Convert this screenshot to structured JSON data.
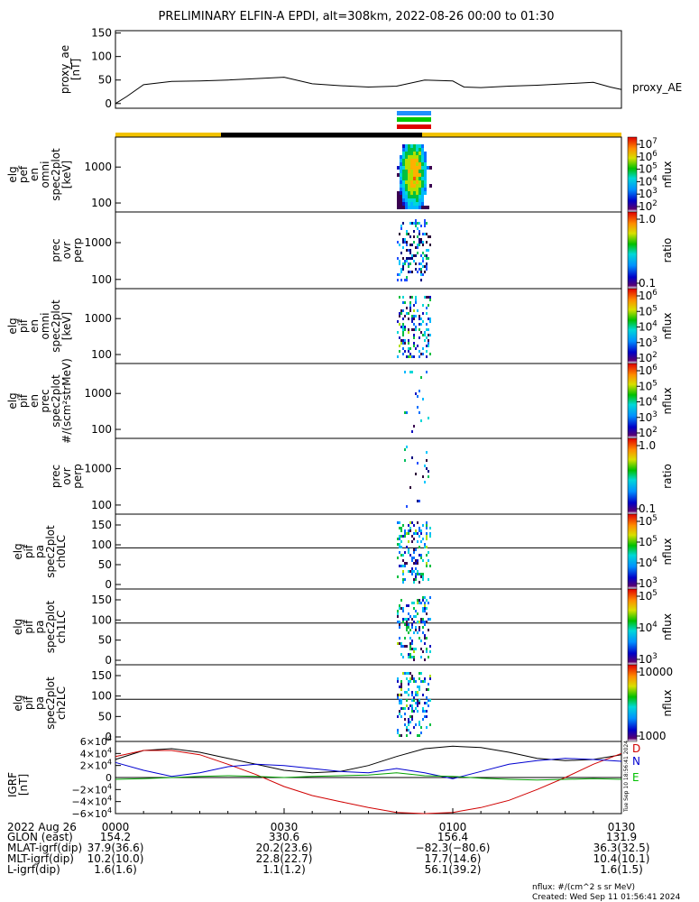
{
  "title": "PRELIMINARY ELFIN-A EPDI, alt=308km, 2022-08-26 00:00 to 01:30",
  "proxy_ae": {
    "ylabel_lines": [
      "proxy_ae",
      "[nT]"
    ],
    "label": "proxy_AE",
    "yticks": [
      "150",
      "100",
      "50",
      "0"
    ],
    "ylim": [
      -10,
      155
    ],
    "x_min": [
      0,
      2,
      5,
      10,
      15,
      20,
      30,
      35,
      40,
      45,
      50,
      55,
      60,
      62,
      65,
      70,
      75,
      80,
      85,
      88,
      90
    ],
    "values": [
      0,
      15,
      40,
      47,
      48,
      50,
      56,
      42,
      38,
      35,
      37,
      50,
      48,
      35,
      34,
      37,
      39,
      42,
      45,
      35,
      30
    ]
  },
  "spectrogram_panels": [
    {
      "ylabel_lines": [
        "elg",
        "pef",
        "en",
        "omni",
        "spec2plot",
        "[keV]"
      ],
      "yticks": [
        "1000",
        "100"
      ],
      "cbar": {
        "type": "log",
        "ticks": [
          "10^7",
          "10^6",
          "10^5",
          "10^4",
          "10^3",
          "10^2"
        ],
        "label": "nflux"
      }
    },
    {
      "ylabel_lines": [
        "prec",
        "ovr",
        "perp"
      ],
      "yticks": [
        "1000",
        "100"
      ],
      "cbar": {
        "type": "ratio",
        "ticks": [
          "1.0",
          "0.1"
        ],
        "label": "ratio"
      }
    },
    {
      "ylabel_lines": [
        "elg",
        "pif",
        "en",
        "omni",
        "spec2plot",
        "[keV]"
      ],
      "yticks": [
        "1000",
        "100"
      ],
      "cbar": {
        "type": "log",
        "ticks": [
          "10^6",
          "10^5",
          "10^4",
          "10^3",
          "10^2"
        ],
        "label": "nflux"
      }
    },
    {
      "ylabel_lines": [
        "elg",
        "pif",
        "en",
        "prec",
        "spec2plot",
        "#/(scm²strMeV)"
      ],
      "yticks": [
        "1000",
        "100"
      ],
      "cbar": {
        "type": "log",
        "ticks": [
          "10^6",
          "10^5",
          "10^4",
          "10^3",
          "10^2"
        ],
        "label": "nflux"
      }
    },
    {
      "ylabel_lines": [
        "prec",
        "ovr",
        "perp"
      ],
      "yticks": [
        "1000",
        "100"
      ],
      "cbar": {
        "type": "ratio",
        "ticks": [
          "1.0",
          "0.1"
        ],
        "label": "ratio"
      }
    },
    {
      "ylabel_lines": [
        "elg",
        "pif",
        "pa",
        "spec2plot",
        "ch0LC"
      ],
      "yticks": [
        "150",
        "100",
        "50",
        "0"
      ],
      "cbar": {
        "type": "log",
        "ticks": [
          "10^5",
          "10^5",
          "10^4",
          "10^3"
        ],
        "label": "nflux"
      }
    },
    {
      "ylabel_lines": [
        "elg",
        "pif",
        "pa",
        "spec2plot",
        "ch1LC"
      ],
      "yticks": [
        "150",
        "100",
        "50",
        "0"
      ],
      "cbar": {
        "type": "log",
        "ticks": [
          "10^5",
          "10^4",
          "10^3"
        ],
        "label": "nflux"
      }
    },
    {
      "ylabel_lines": [
        "elg",
        "pif",
        "pa",
        "spec2plot",
        "ch2LC"
      ],
      "yticks": [
        "150",
        "100",
        "50",
        "0"
      ],
      "cbar": {
        "type": "log",
        "ticks": [
          "10000",
          "1000"
        ],
        "label": "nflux"
      }
    }
  ],
  "igrf": {
    "ylabel_lines": [
      "IGRF",
      "[nT]"
    ],
    "yticks": [
      "6×10^4",
      "4×10^4",
      "2×10^4",
      "0",
      "−2×10^4",
      "−4×10^4",
      "−6×10^4"
    ],
    "ylim": [
      -60000,
      60000
    ],
    "legend": [
      "D",
      "N",
      "E"
    ],
    "colors": {
      "D": "#000000",
      "N": "#d00000",
      "E": "#00a000",
      "B": "#0000d0"
    },
    "x_min": [
      0,
      5,
      10,
      15,
      20,
      25,
      30,
      35,
      40,
      45,
      50,
      55,
      60,
      65,
      70,
      75,
      80,
      85,
      90
    ],
    "series_black": [
      30000,
      45000,
      48000,
      42000,
      32000,
      22000,
      12000,
      8000,
      10000,
      20000,
      35000,
      48000,
      52000,
      50000,
      42000,
      32000,
      28000,
      30000,
      38000
    ],
    "series_red": [
      35000,
      45000,
      45000,
      38000,
      22000,
      5000,
      -15000,
      -30000,
      -40000,
      -50000,
      -58000,
      -60000,
      -58000,
      -50000,
      -38000,
      -20000,
      0,
      22000,
      40000
    ],
    "series_blue": [
      25000,
      12000,
      2000,
      8000,
      18000,
      22000,
      20000,
      15000,
      10000,
      8000,
      15000,
      8000,
      -2000,
      10000,
      22000,
      28000,
      32000,
      30000,
      27000
    ],
    "series_green": [
      -3000,
      -2000,
      0,
      2000,
      3000,
      2000,
      0,
      2000,
      3000,
      4000,
      8000,
      3000,
      2000,
      -1000,
      -3000,
      -4000,
      -3000,
      -2000,
      -3000
    ]
  },
  "time_axis": {
    "row_label": "2022 Aug 26",
    "ticks": [
      "0000",
      "0030",
      "0100",
      "0130"
    ],
    "x_min_range": [
      0,
      90
    ]
  },
  "ephemeris": [
    {
      "label": "GLON (east)",
      "values": [
        "154.2",
        "330.6",
        "156.4",
        "131.9"
      ]
    },
    {
      "label": "MLAT-igrf(dip)",
      "values": [
        "37.9(36.6)",
        "20.2(23.6)",
        "−82.3(−80.6)",
        "36.3(32.5)"
      ]
    },
    {
      "label": "MLT-igrf(dip)",
      "values": [
        "10.2(10.0)",
        "22.8(22.7)",
        "17.7(14.6)",
        "10.4(10.1)"
      ]
    },
    {
      "label": "L-igrf(dip)",
      "values": [
        "1.6(1.6)",
        "1.1(1.2)",
        "56.1(39.2)",
        "1.6(1.5)"
      ]
    }
  ],
  "footer": {
    "units": "nflux: #/(cm^2 s sr MeV)",
    "created": "Created: Wed Sep 11 01:56:41 2024",
    "side_stamp": "Tue Sep 10 18:56:41 2024"
  },
  "colors": {
    "bar_yellow": "#f2c200",
    "bar_black": "#000000",
    "ind_blue": "#1e90ff",
    "ind_green": "#00c800",
    "ind_red": "#e00000"
  }
}
